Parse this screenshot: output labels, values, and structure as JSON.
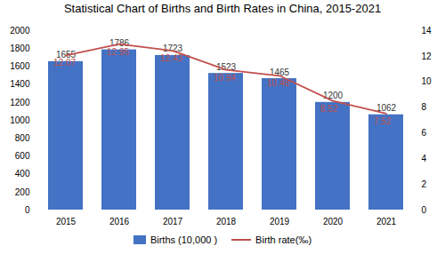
{
  "chart_data": {
    "type": "bar",
    "title": "Statistical Chart of Births and Birth Rates in China, 2015-2021",
    "categories": [
      "2015",
      "2016",
      "2017",
      "2018",
      "2019",
      "2020",
      "2021"
    ],
    "series": [
      {
        "name": "Births (10,000 )",
        "type": "bar",
        "color": "#4472C4",
        "values": [
          1655,
          1786,
          1723,
          1523,
          1465,
          1200,
          1062
        ]
      },
      {
        "name": "Birth rate(‰)",
        "type": "line",
        "color": "#C0504D",
        "axis": "y2",
        "values": [
          12.07,
          12.95,
          12.43,
          10.94,
          10.48,
          8.52,
          7.52
        ]
      }
    ],
    "ylim": [
      0,
      2000
    ],
    "yticks": [
      0,
      200,
      400,
      600,
      800,
      1000,
      1200,
      1400,
      1600,
      1800,
      2000
    ],
    "y2lim": [
      0,
      14
    ],
    "y2ticks": [
      0,
      2,
      4,
      6,
      8,
      10,
      12,
      14
    ],
    "data_labels": true,
    "grid": false,
    "legend": "bottom"
  }
}
